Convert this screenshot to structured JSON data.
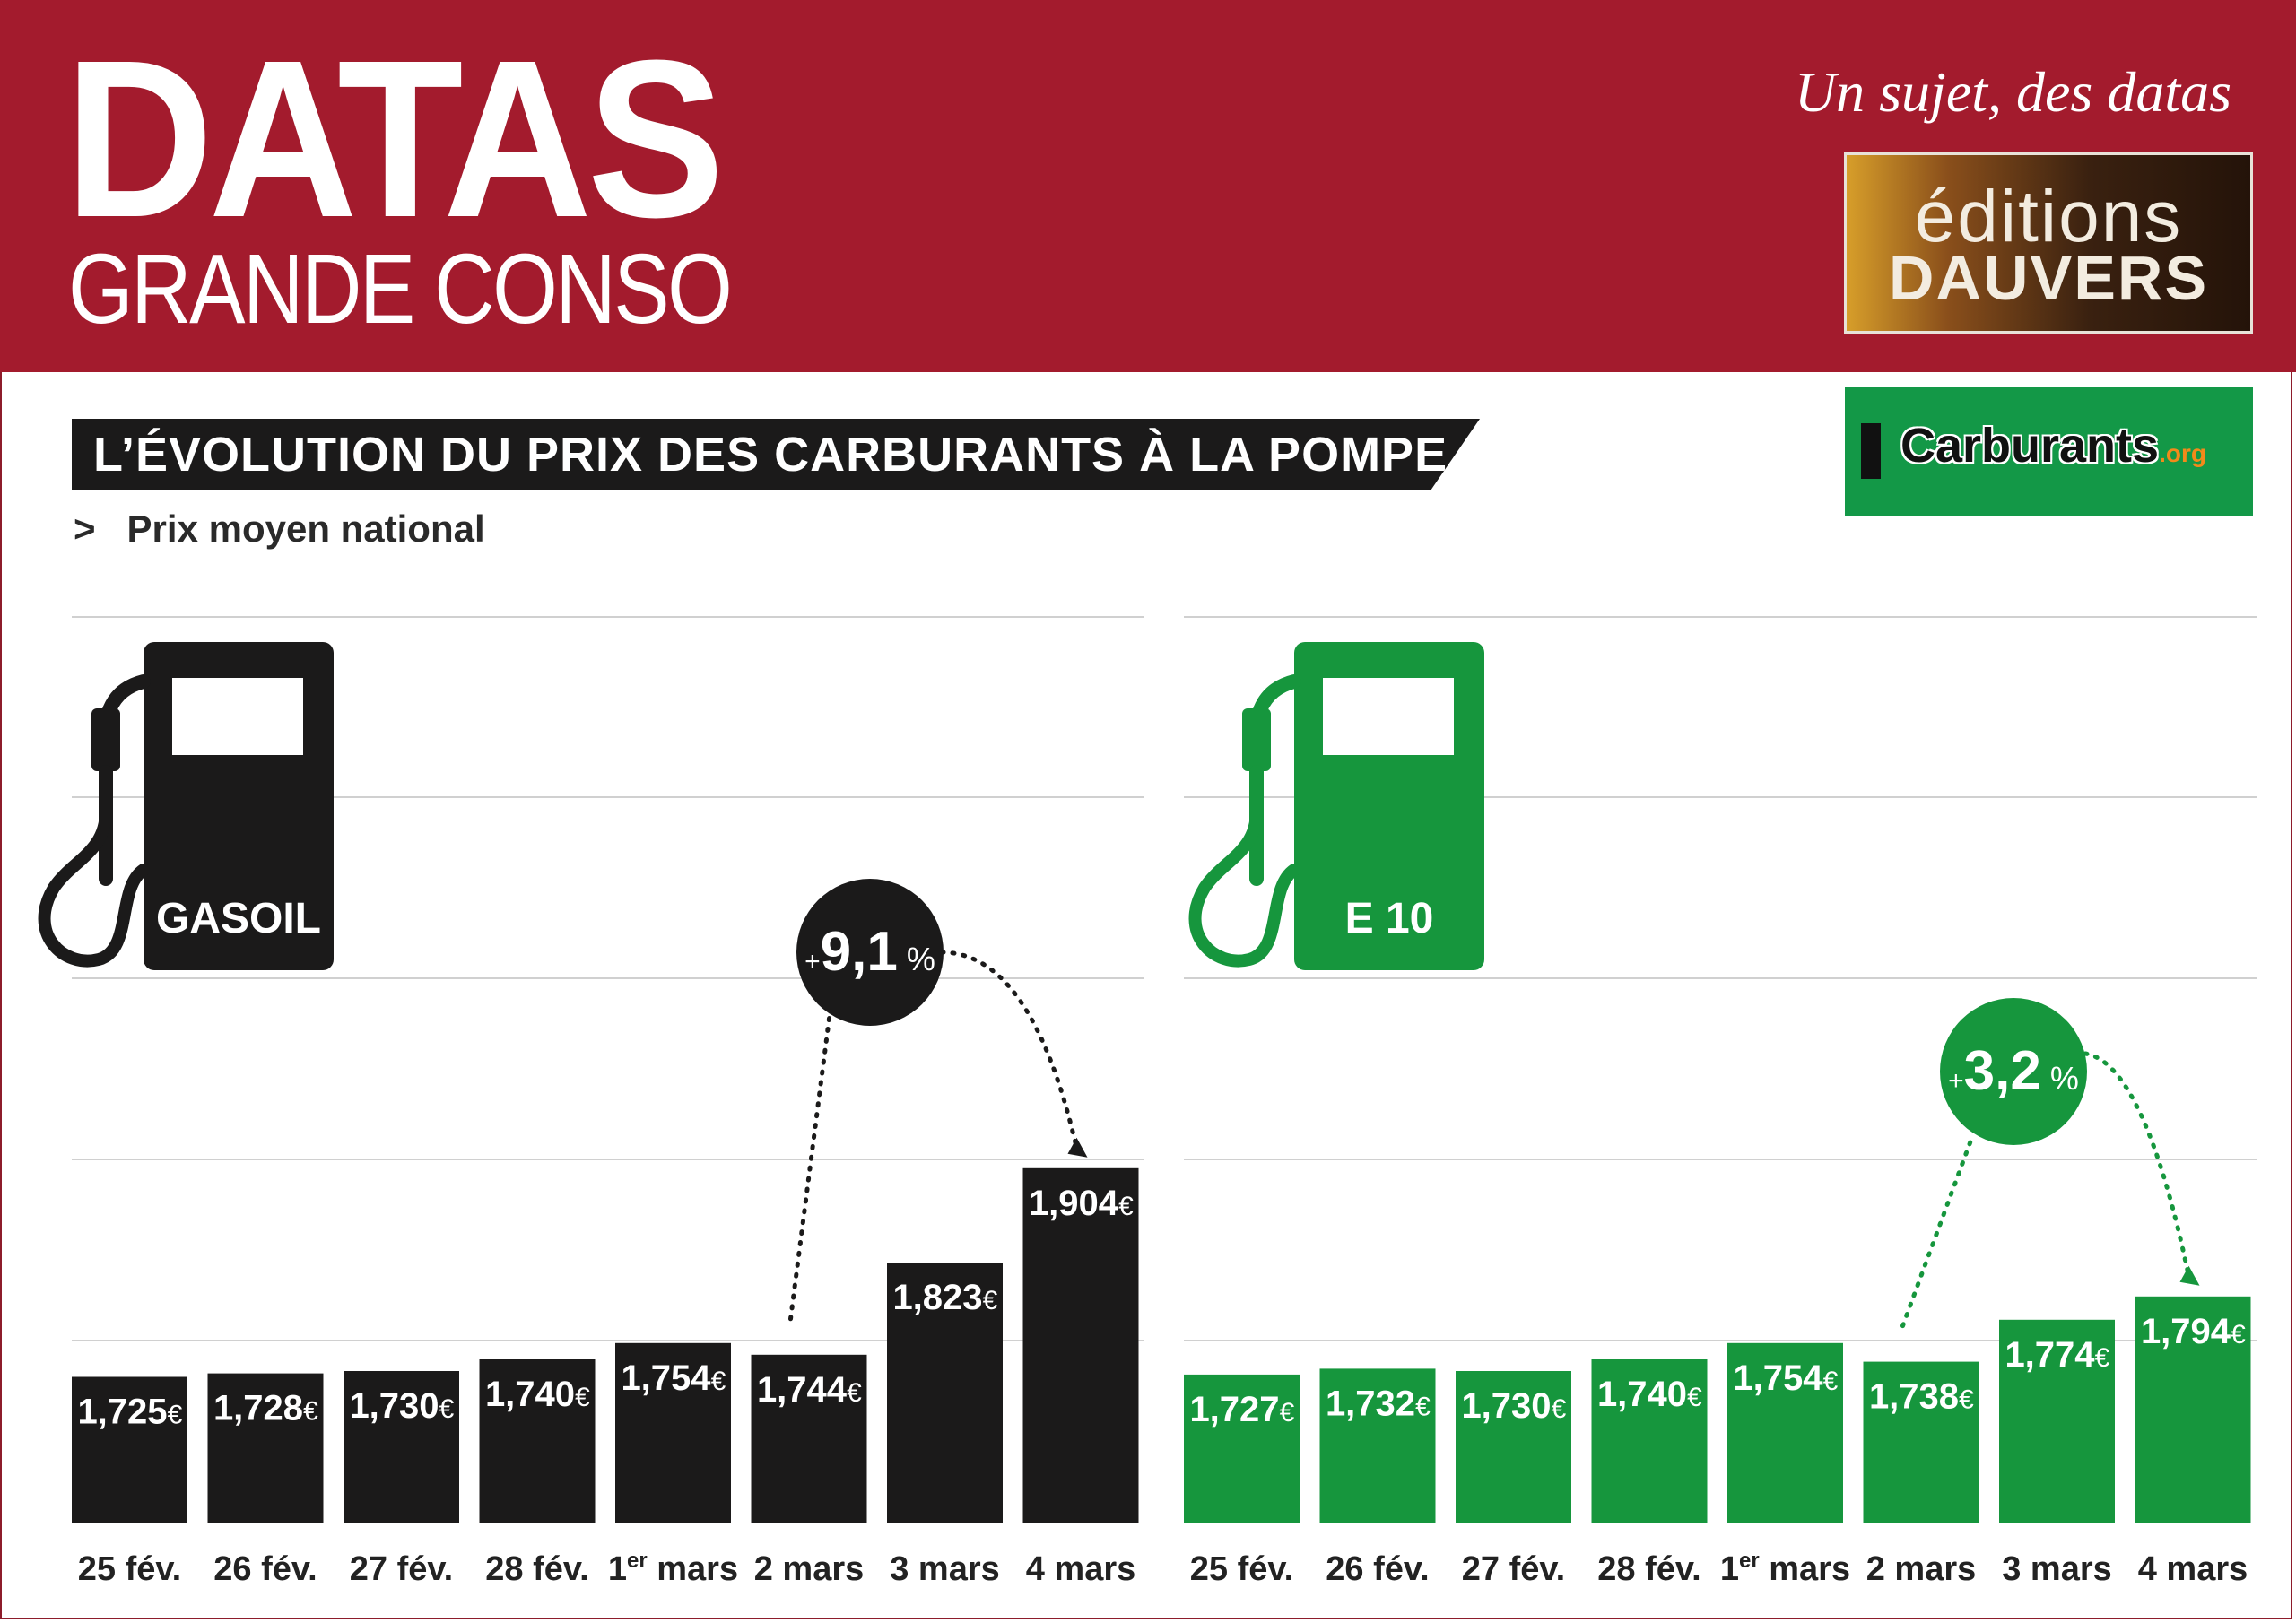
{
  "header": {
    "title": "DATAS",
    "subtitle": "GRANDE CONSO",
    "tagline": "Un sujet, des datas",
    "publisher_logo_top": "éditions",
    "publisher_logo_bottom": "DAUVERS"
  },
  "chart_header": {
    "title": "L’ÉVOLUTION DU PRIX DES CARBURANTS À LA POMPE",
    "subtitle_marker": ">",
    "subtitle": "Prix moyen national",
    "source_logo_main": "Carburants",
    "source_logo_suffix": ".org"
  },
  "colors": {
    "header_red": "#a31b2d",
    "gasoil": "#1b1a1a",
    "e10": "#16963d"
  },
  "chart_data": [
    {
      "type": "bar",
      "name": "GASOIL",
      "color": "#1b1a1a",
      "categories": [
        "25 fév.",
        "26 fév.",
        "27 fév.",
        "28 fév.",
        "1er mars",
        "2 mars",
        "3 mars",
        "4 mars"
      ],
      "values": [
        1.725,
        1.728,
        1.73,
        1.74,
        1.754,
        1.744,
        1.823,
        1.904
      ],
      "value_labels": [
        "1,725",
        "1,728",
        "1,730",
        "1,740",
        "1,754",
        "1,744",
        "1,823",
        "1,904"
      ],
      "unit": "€",
      "annotation": {
        "prefix": "+",
        "value": "9,1",
        "suffix": "%",
        "from": "2 mars",
        "to": "4 mars"
      }
    },
    {
      "type": "bar",
      "name": "E 10",
      "color": "#16963d",
      "categories": [
        "25 fév.",
        "26 fév.",
        "27 fév.",
        "28 fév.",
        "1er mars",
        "2 mars",
        "3 mars",
        "4 mars"
      ],
      "values": [
        1.727,
        1.732,
        1.73,
        1.74,
        1.754,
        1.738,
        1.774,
        1.794
      ],
      "value_labels": [
        "1,727",
        "1,732",
        "1,730",
        "1,740",
        "1,754",
        "1,738",
        "1,774",
        "1,794"
      ],
      "unit": "€",
      "annotation": {
        "prefix": "+",
        "value": "3,2",
        "suffix": "%",
        "from": "2 mars",
        "to": "4 mars"
      }
    }
  ]
}
